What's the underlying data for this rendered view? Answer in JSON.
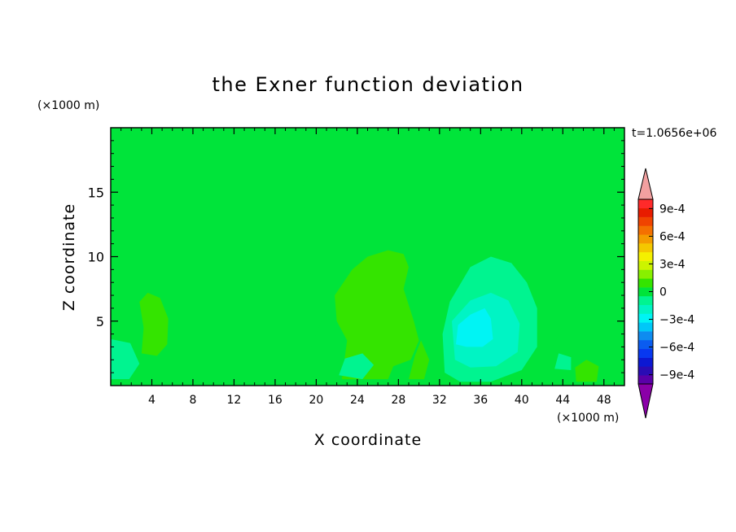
{
  "chart_data": {
    "type": "heatmap",
    "title": "the Exner function deviation",
    "xlabel": "X coordinate",
    "ylabel": "Z coordinate",
    "x_unit": "(×1000 m)",
    "y_unit": "(×1000 m)",
    "time_label": "t=1.0656e+06",
    "xlim": [
      0,
      50
    ],
    "ylim": [
      0,
      20
    ],
    "x_ticks": [
      4,
      8,
      12,
      16,
      20,
      24,
      28,
      32,
      36,
      40,
      44,
      48
    ],
    "y_ticks": [
      5,
      10,
      15
    ],
    "colorbar": {
      "levels": [
        -0.0011,
        -0.001,
        -0.0009,
        -0.0008,
        -0.0007,
        -0.0006,
        -0.0005,
        -0.0004,
        -0.0003,
        -0.0002,
        -0.0001,
        0,
        0.0001,
        0.0002,
        0.0003,
        0.0004,
        0.0005,
        0.0006,
        0.0007,
        0.0008,
        0.0009,
        0.001,
        0.0011
      ],
      "tick_values": [
        0.0009,
        0.0006,
        0.0003,
        0,
        -0.0003,
        -0.0006,
        -0.0009
      ],
      "tick_labels": [
        "9e-4",
        "6e-4",
        "3e-4",
        "0",
        "−3e-4",
        "−6e-4",
        "−9e-4"
      ],
      "colors": [
        "#8a00a8",
        "#5a00a8",
        "#2a0cb4",
        "#0c18d2",
        "#0838f0",
        "#0a5cf0",
        "#0e8cf0",
        "#00c8f8",
        "#00f4f4",
        "#00f4c4",
        "#00f490",
        "#00e43a",
        "#34e400",
        "#88f000",
        "#ccf400",
        "#f4f000",
        "#f4c800",
        "#f49c00",
        "#f47000",
        "#f04400",
        "#e81c00",
        "#ff2a2a",
        "#f2a0a0"
      ]
    },
    "regions": [
      {
        "level": 0,
        "polygon": [
          [
            0,
            0
          ],
          [
            50,
            0
          ],
          [
            50,
            20
          ],
          [
            0,
            20
          ]
        ]
      },
      {
        "level": 5e-05,
        "polygon": [
          [
            20,
            20
          ],
          [
            31,
            20
          ],
          [
            32,
            18
          ],
          [
            28.5,
            17.5
          ],
          [
            28,
            16
          ],
          [
            28.5,
            13
          ],
          [
            28.5,
            9.5
          ],
          [
            30.5,
            8
          ],
          [
            30.5,
            2
          ],
          [
            31.5,
            0
          ],
          [
            19.5,
            0
          ],
          [
            19.5,
            3
          ],
          [
            20.5,
            5
          ],
          [
            20.5,
            8
          ],
          [
            19,
            9
          ],
          [
            19.5,
            12
          ],
          [
            18.5,
            15
          ],
          [
            19.5,
            17
          ],
          [
            20,
            18.5
          ]
        ]
      },
      {
        "level": 5e-05,
        "polygon": [
          [
            0,
            0
          ],
          [
            6.5,
            0
          ],
          [
            6.5,
            3
          ],
          [
            5.2,
            6
          ],
          [
            4.5,
            10
          ],
          [
            4.2,
            13
          ],
          [
            2,
            14
          ],
          [
            0,
            14
          ]
        ]
      },
      {
        "level": 5e-05,
        "polygon": [
          [
            45,
            0
          ],
          [
            50,
            0
          ],
          [
            50,
            8
          ],
          [
            48.5,
            8.5
          ],
          [
            46.5,
            7
          ],
          [
            44.5,
            5.5
          ],
          [
            43,
            3
          ],
          [
            43.2,
            0
          ]
        ]
      },
      {
        "level": 0.00015,
        "polygon": [
          [
            22.5,
            0.5
          ],
          [
            23,
            3.5
          ],
          [
            22,
            5
          ],
          [
            21.8,
            7
          ],
          [
            23.5,
            9
          ],
          [
            25,
            10
          ],
          [
            27,
            10.5
          ],
          [
            28.5,
            10.2
          ],
          [
            29,
            9.2
          ],
          [
            28.5,
            7.5
          ],
          [
            29.5,
            5
          ],
          [
            30,
            3.5
          ],
          [
            29.2,
            2
          ],
          [
            27.5,
            1.5
          ],
          [
            27,
            0.5
          ]
        ]
      },
      {
        "level": 0.00015,
        "polygon": [
          [
            3,
            2.5
          ],
          [
            3.2,
            4.5
          ],
          [
            2.8,
            6.5
          ],
          [
            3.6,
            7.2
          ],
          [
            4.8,
            6.8
          ],
          [
            5.6,
            5.2
          ],
          [
            5.5,
            3.2
          ],
          [
            4.5,
            2.3
          ]
        ]
      },
      {
        "level": 0.00015,
        "polygon": [
          [
            29,
            0.5
          ],
          [
            30.5,
            0.5
          ],
          [
            31,
            2
          ],
          [
            30.2,
            3.5
          ],
          [
            29.6,
            2.3
          ]
        ]
      },
      {
        "level": 0.00015,
        "polygon": [
          [
            45.3,
            0.3
          ],
          [
            47.3,
            0.3
          ],
          [
            47.5,
            1.5
          ],
          [
            46.3,
            2
          ],
          [
            45.2,
            1.4
          ]
        ]
      },
      {
        "level": -5e-05,
        "polygon": [
          [
            32.5,
            1
          ],
          [
            32.3,
            4
          ],
          [
            33,
            6.5
          ],
          [
            35,
            9.2
          ],
          [
            37,
            10
          ],
          [
            39,
            9.5
          ],
          [
            40.5,
            8
          ],
          [
            41.5,
            6
          ],
          [
            41.5,
            3
          ],
          [
            40,
            1.2
          ],
          [
            37,
            0.3
          ],
          [
            34,
            0.3
          ]
        ]
      },
      {
        "level": -5e-05,
        "polygon": [
          [
            0,
            0.5
          ],
          [
            1.8,
            0.5
          ],
          [
            2.8,
            1.7
          ],
          [
            1.9,
            3.3
          ],
          [
            0,
            3.6
          ]
        ]
      },
      {
        "level": -5e-05,
        "polygon": [
          [
            22.2,
            0.8
          ],
          [
            24.5,
            0.5
          ],
          [
            25.6,
            1.6
          ],
          [
            24.5,
            2.5
          ],
          [
            22.8,
            2.1
          ]
        ]
      },
      {
        "level": -5e-05,
        "polygon": [
          [
            43.2,
            1.3
          ],
          [
            44.8,
            1.2
          ],
          [
            44.8,
            2.2
          ],
          [
            43.6,
            2.5
          ]
        ]
      },
      {
        "level": -0.00015,
        "polygon": [
          [
            33.5,
            2
          ],
          [
            33.2,
            5
          ],
          [
            35,
            6.6
          ],
          [
            37,
            7.2
          ],
          [
            38.7,
            6.6
          ],
          [
            39.8,
            4.8
          ],
          [
            39.6,
            2.6
          ],
          [
            37.5,
            1.5
          ],
          [
            35,
            1.4
          ]
        ]
      },
      {
        "level": -0.00025,
        "polygon": [
          [
            33.6,
            3.2
          ],
          [
            33.8,
            4.7
          ],
          [
            35,
            5.5
          ],
          [
            36.4,
            6
          ],
          [
            37,
            5.2
          ],
          [
            37.2,
            3.6
          ],
          [
            36.2,
            3
          ],
          [
            34.6,
            3
          ]
        ]
      }
    ]
  }
}
